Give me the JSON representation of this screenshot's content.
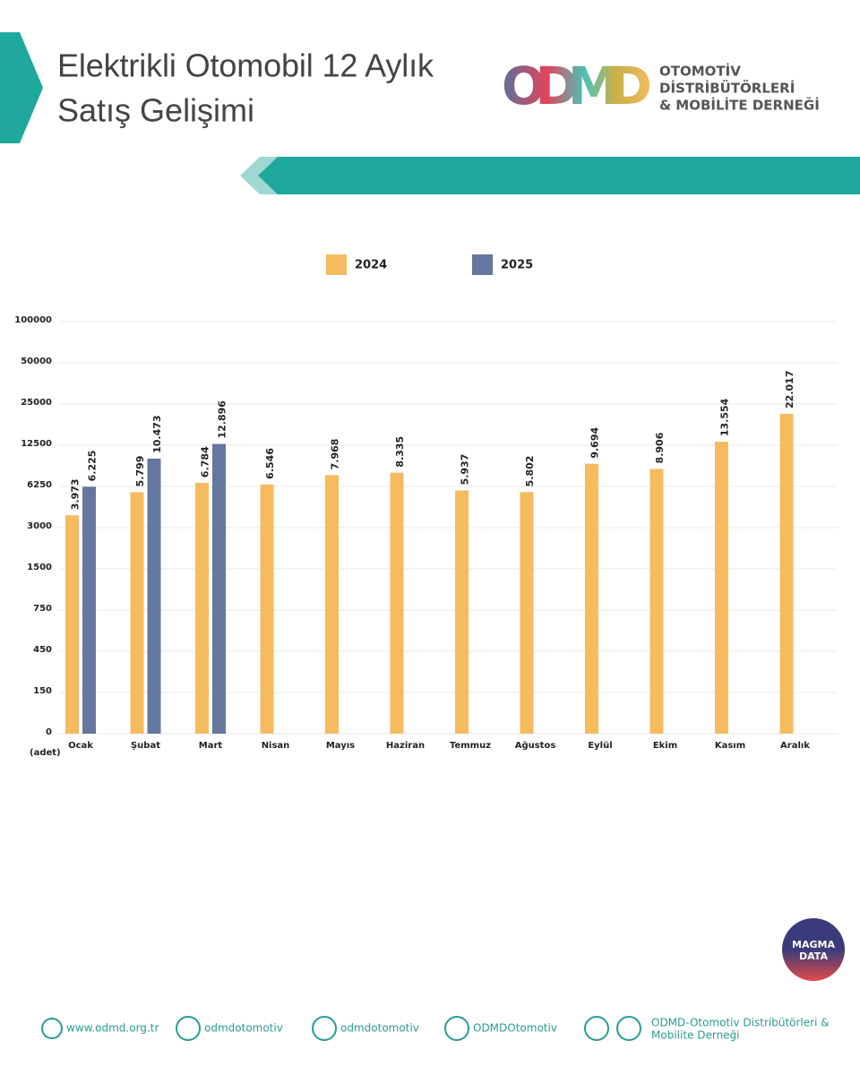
{
  "chart_data": {
    "type": "bar",
    "title": [
      "Elektrikli Otomobil 12 Aylık",
      "Satış Gelişimi"
    ],
    "logo": "ODMD",
    "organization": [
      "OTOMOTİV",
      "DİSTRİBÜTÖRLERİ",
      "& MOBİLİTE DERNEĞİ"
    ],
    "y_unit": "(adet)",
    "categories": [
      "Ocak",
      "Şubat",
      "Mart",
      "Nisan",
      "Mayıs",
      "Haziran",
      "Temmuz",
      "Ağustos",
      "Eylül",
      "Ekim",
      "Kasım",
      "Aralık"
    ],
    "series": [
      {
        "name": "2024",
        "color": "#f6bb5e",
        "values": [
          3973,
          5799,
          6784,
          6546,
          7968,
          8335,
          5937,
          5802,
          9694,
          8906,
          13554,
          22017
        ],
        "value_labels": [
          "3.973",
          "5.799",
          "6.784",
          "6.546",
          "7.968",
          "8.335",
          "5.937",
          "5.802",
          "9.694",
          "8.906",
          "13.554",
          "22.017"
        ]
      },
      {
        "name": "2025",
        "color": "#65779e",
        "values": [
          6225,
          10473,
          12896,
          null,
          null,
          null,
          null,
          null,
          null,
          null,
          null,
          null
        ],
        "value_labels": [
          "6.225",
          "10.473",
          "12.896",
          null,
          null,
          null,
          null,
          null,
          null,
          null,
          null,
          null
        ]
      }
    ],
    "ylim": [
      0,
      100000
    ],
    "yticks": [
      0,
      150,
      450,
      750,
      1500,
      3000,
      6250,
      12500,
      25000,
      50000,
      100000
    ],
    "grid": true,
    "badge": [
      "MAGMA",
      "DATA"
    ],
    "footer": [
      "www.odmd.org.tr",
      "odmdotomotiv",
      "odmdotomotiv",
      "ODMDOtomotiv",
      "ODMD-Otomotiv Distribütörleri &",
      "Mobilite Derneği"
    ]
  }
}
